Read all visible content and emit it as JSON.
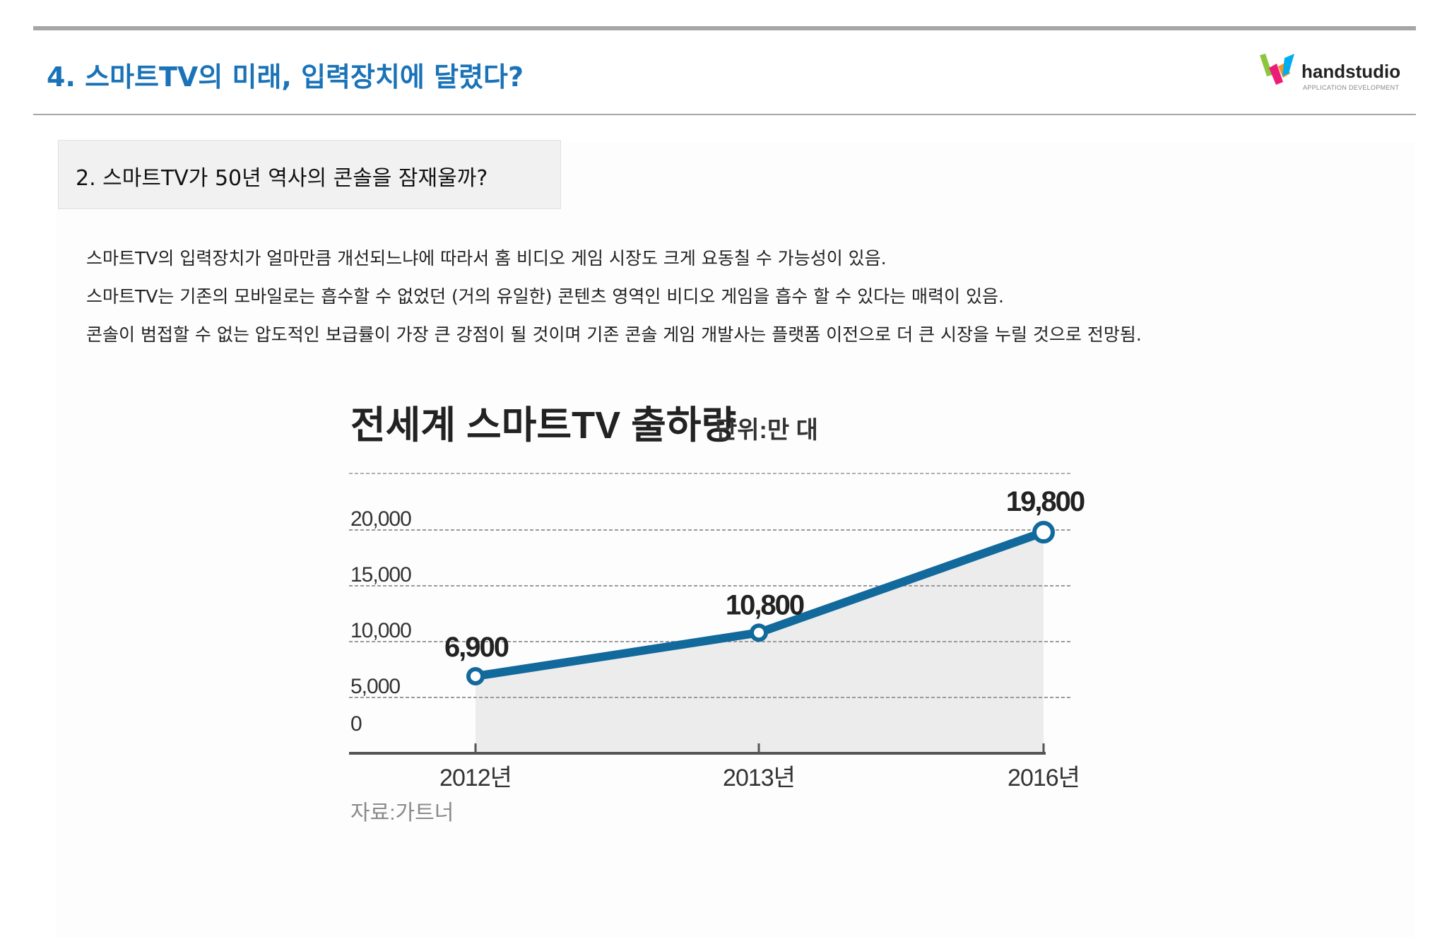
{
  "header": {
    "title": "4. 스마트TV의 미래, 입력장치에 달렸다?",
    "logo_name": "handstudio",
    "logo_tagline": "APPLICATION DEVELOPMENT"
  },
  "section": {
    "title": "2. 스마트TV가 50년 역사의 콘솔을 잠재울까?"
  },
  "body_lines": [
    "스마트TV의 입력장치가 얼마만큼 개선되느냐에 따라서 홈 비디오 게임 시장도 크게 요동칠 수 가능성이 있음.",
    "스마트TV는 기존의 모바일로는 흡수할 수 없었던 (거의 유일한) 콘텐츠 영역인 비디오 게임을 흡수 할 수 있다는 매력이 있음.",
    "콘솔이 범접할 수 없는 압도적인 보급률이 가장 큰 강점이 될 것이며 기존 콘솔 게임 개발사는 플랫폼 이전으로 더 큰 시장을 누릴 것으로 전망됨."
  ],
  "colors": {
    "title_blue": "#1a73b8",
    "line_blue": "#12699c",
    "fill_gray": "#ececec"
  },
  "chart_data": {
    "type": "line",
    "title": "전세계 스마트TV 출하량",
    "unit_label": "단위:만 대",
    "categories": [
      "2012년",
      "2013년",
      "2016년"
    ],
    "values": [
      6900,
      10800,
      19800
    ],
    "data_labels": [
      "6,900",
      "10,800",
      "19,800"
    ],
    "y_ticks": [
      0,
      5000,
      10000,
      15000,
      20000
    ],
    "y_tick_labels": [
      "0",
      "5,000",
      "10,000",
      "15,000",
      "20,000"
    ],
    "ylim": [
      0,
      25000
    ],
    "grid": true,
    "source": "자료:가트너"
  }
}
